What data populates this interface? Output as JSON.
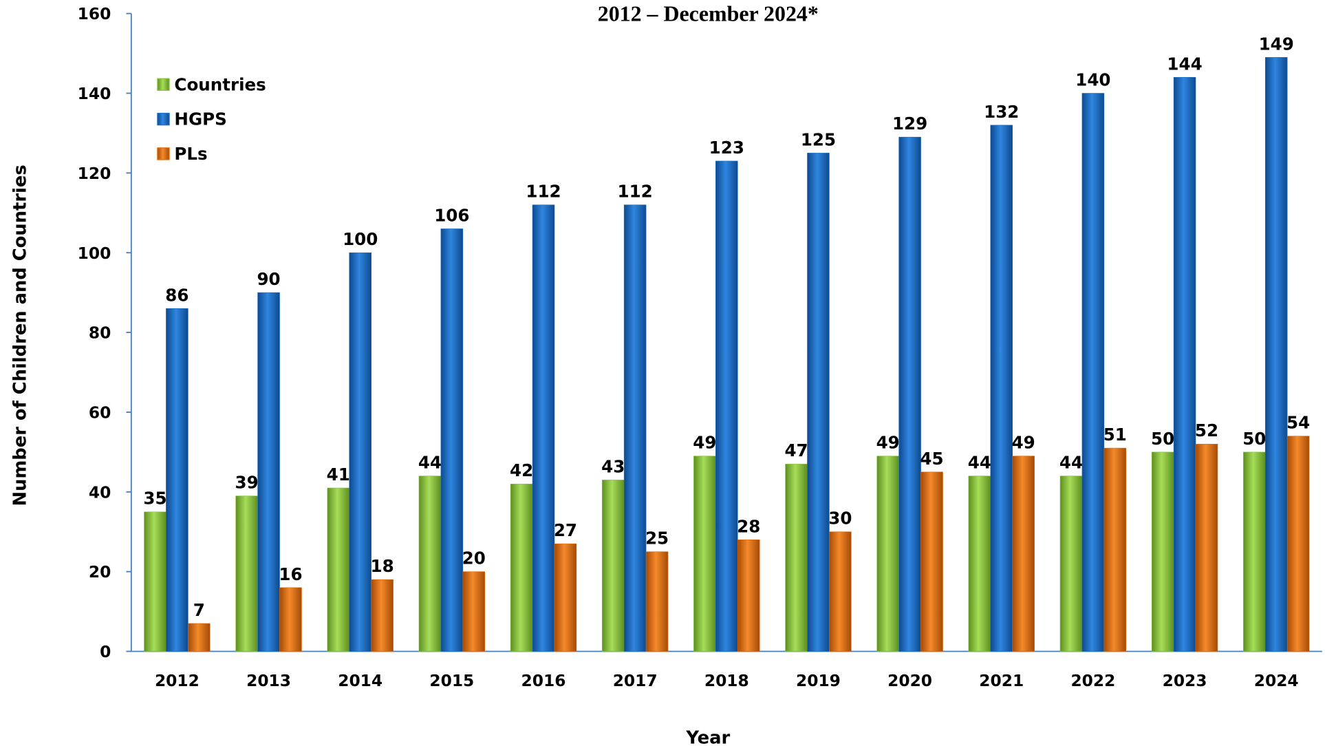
{
  "chart_data": {
    "type": "bar",
    "title": "2012 –  December 2024*",
    "x_label": "Year",
    "y_label": "Number of Children and Countries",
    "categories": [
      "2012",
      "2013",
      "2014",
      "2015",
      "2016",
      "2017",
      "2018",
      "2019",
      "2020",
      "2021",
      "2022",
      "2023",
      "2024"
    ],
    "series": [
      {
        "name": "Countries",
        "color": "#8dc63f",
        "values": [
          35,
          39,
          41,
          44,
          42,
          43,
          49,
          47,
          49,
          44,
          44,
          50,
          50
        ]
      },
      {
        "name": "HGPS",
        "color": "#1f6fc4",
        "values": [
          86,
          90,
          100,
          106,
          112,
          112,
          123,
          125,
          129,
          132,
          140,
          144,
          149
        ]
      },
      {
        "name": "PLs",
        "color": "#e36c09",
        "values": [
          7,
          16,
          18,
          20,
          27,
          25,
          28,
          30,
          45,
          49,
          51,
          52,
          54
        ]
      }
    ],
    "ylim": [
      0,
      160
    ],
    "yticks": [
      0,
      20,
      40,
      60,
      80,
      100,
      120,
      140,
      160
    ],
    "grid": false,
    "legend": "upper left"
  }
}
